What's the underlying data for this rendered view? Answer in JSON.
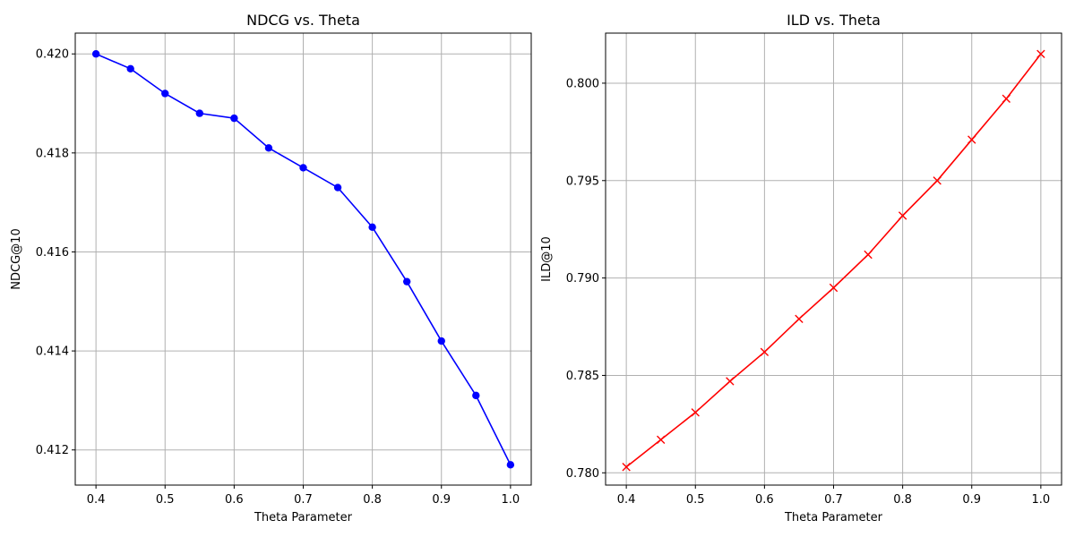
{
  "chart_data": [
    {
      "type": "line",
      "title": "NDCG vs. Theta",
      "xlabel": "Theta Parameter",
      "ylabel": "NDCG@10",
      "x": [
        0.4,
        0.45,
        0.5,
        0.55,
        0.6,
        0.65,
        0.7,
        0.75,
        0.8,
        0.85,
        0.9,
        0.95,
        1.0
      ],
      "series": [
        {
          "values": [
            0.42,
            0.4197,
            0.4192,
            0.4188,
            0.4187,
            0.4181,
            0.4177,
            0.4173,
            0.4165,
            0.4154,
            0.4142,
            0.4131,
            0.4117
          ],
          "color": "#0000ff",
          "marker": "circle"
        }
      ],
      "xlim": [
        0.37,
        1.03
      ],
      "ylim": [
        0.41129,
        0.42042
      ],
      "xticks": [
        0.4,
        0.5,
        0.6,
        0.7,
        0.8,
        0.9,
        1.0
      ],
      "xtick_labels": [
        "0.4",
        "0.5",
        "0.6",
        "0.7",
        "0.8",
        "0.9",
        "1.0"
      ],
      "yticks": [
        0.412,
        0.414,
        0.416,
        0.418,
        0.42
      ],
      "ytick_labels": [
        "0.412",
        "0.414",
        "0.416",
        "0.418",
        "0.420"
      ],
      "grid": true
    },
    {
      "type": "line",
      "title": "ILD vs. Theta",
      "xlabel": "Theta Parameter",
      "ylabel": "ILD@10",
      "x": [
        0.4,
        0.45,
        0.5,
        0.55,
        0.6,
        0.65,
        0.7,
        0.75,
        0.8,
        0.85,
        0.9,
        0.95,
        1.0
      ],
      "series": [
        {
          "values": [
            0.7803,
            0.7817,
            0.7831,
            0.7847,
            0.7862,
            0.7879,
            0.7895,
            0.7912,
            0.7932,
            0.795,
            0.7971,
            0.7992,
            0.8015
          ],
          "color": "#ff0000",
          "marker": "x"
        }
      ],
      "xlim": [
        0.37,
        1.03
      ],
      "ylim": [
        0.77937,
        0.80257
      ],
      "xticks": [
        0.4,
        0.5,
        0.6,
        0.7,
        0.8,
        0.9,
        1.0
      ],
      "xtick_labels": [
        "0.4",
        "0.5",
        "0.6",
        "0.7",
        "0.8",
        "0.9",
        "1.0"
      ],
      "yticks": [
        0.78,
        0.785,
        0.79,
        0.795,
        0.8
      ],
      "ytick_labels": [
        "0.780",
        "0.785",
        "0.790",
        "0.795",
        "0.800"
      ],
      "grid": true
    }
  ]
}
